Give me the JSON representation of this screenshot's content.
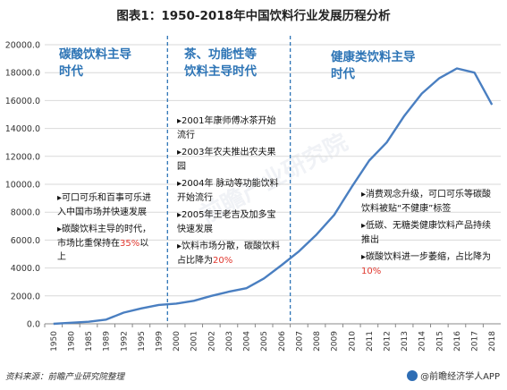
{
  "title": "图表1：1950-2018年中国饮料行业发展历程分析",
  "chart_data": {
    "type": "line",
    "x": [
      "1950",
      "1980",
      "1985",
      "1989",
      "1992",
      "1995",
      "1999",
      "2000",
      "2001",
      "2002",
      "2003",
      "2004",
      "2005",
      "2006",
      "2007",
      "2008",
      "2009",
      "2010",
      "2011",
      "2012",
      "2013",
      "2014",
      "2015",
      "2016",
      "2017",
      "2018"
    ],
    "y": [
      0,
      80,
      150,
      300,
      800,
      1100,
      1350,
      1450,
      1650,
      2000,
      2300,
      2550,
      3250,
      4200,
      5200,
      6400,
      7800,
      9800,
      11700,
      13000,
      14900,
      16500,
      17600,
      18300,
      18000,
      15700
    ],
    "ylim": [
      0,
      20000
    ],
    "yticks": [
      "0.0",
      "2000.0",
      "4000.0",
      "6000.0",
      "8000.0",
      "10000.0",
      "12000.0",
      "14000.0",
      "16000.0",
      "18000.0",
      "20000.0"
    ],
    "grid": true,
    "line_color": "#4a7fc1",
    "divider_after": [
      "1999",
      "2006"
    ]
  },
  "eras": [
    {
      "title": "碳酸饮料主导\n时代"
    },
    {
      "title": "茶、功能性等\n饮料主导时代"
    },
    {
      "title": "健康类饮料主导\n时代"
    }
  ],
  "notes_era1": [
    {
      "text": "▸可口可乐和百事可乐进入中国市场并快速发展",
      "highlight": ""
    },
    {
      "text": "▸碳酸饮料主导的时代，市场比重保持在",
      "highlight": "35%",
      "after": "以上"
    }
  ],
  "notes_era2": [
    {
      "text": "▸2001年康师傅冰茶开始流行",
      "highlight": ""
    },
    {
      "text": "▸2003年农夫推出农夫果园",
      "highlight": ""
    },
    {
      "text": "▸2004年 脉动等功能饮料开始流行",
      "highlight": ""
    },
    {
      "text": "▸2005年王老吉及加多宝快速发展",
      "highlight": ""
    },
    {
      "text": "▸饮料市场分散，碳酸饮料占比降为",
      "highlight": "20%",
      "after": ""
    }
  ],
  "notes_era3": [
    {
      "text": "▸消费观念升级，可口可乐等碳酸饮料被贴“不健康”标签",
      "highlight": ""
    },
    {
      "text": "▸低碳、无糖类健康饮料产品持续推出",
      "highlight": ""
    },
    {
      "text": "▸碳酸饮料进一步萎缩，占比降为",
      "highlight": "10%",
      "after": ""
    }
  ],
  "source": "资料来源：前瞻产业研究院整理",
  "brand": "@前瞻经济学人APP",
  "watermark": "前瞻产业研究院",
  "colors": {
    "accent": "#2e75b6",
    "highlight": "#e0372e",
    "divider": "#2e75b6"
  }
}
